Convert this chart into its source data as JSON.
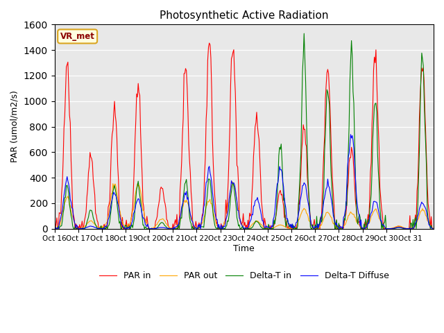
{
  "title": "Photosynthetic Active Radiation",
  "ylabel": "PAR (umol/m2/s)",
  "xlabel": "Time",
  "annotation": "VR_met",
  "ylim": [
    0,
    1600
  ],
  "background_color": "#e8e8e8",
  "legend_labels": [
    "PAR in",
    "PAR out",
    "Delta-T in",
    "Delta-T Diffuse"
  ],
  "colors": {
    "PAR_in": "red",
    "PAR_out": "orange",
    "Delta_T_in": "green",
    "Delta_T_Diffuse": "blue"
  },
  "x_tick_labels": [
    "Oct 16",
    "Oct 17",
    "Oct 18",
    "Oct 19",
    "Oct 20",
    "Oct 21",
    "Oct 22",
    "Oct 23",
    "Oct 24",
    "Oct 25",
    "Oct 26",
    "Oct 27",
    "Oct 28",
    "Oct 29",
    "Oct 30",
    "Oct 31"
  ],
  "par_in_peaks": [
    1340,
    580,
    950,
    1100,
    330,
    1250,
    1440,
    1430,
    930,
    300,
    800,
    1280,
    620,
    1390,
    20,
    1350
  ],
  "par_out_peaks": [
    250,
    60,
    350,
    350,
    80,
    230,
    220,
    350,
    60,
    30,
    160,
    130,
    130,
    150,
    20,
    150
  ],
  "delta_t_peaks": [
    340,
    150,
    330,
    350,
    50,
    380,
    390,
    350,
    60,
    640,
    1400,
    1130,
    1390,
    1020,
    10,
    1360
  ],
  "delta_diffuse_peaks": [
    380,
    20,
    290,
    230,
    10,
    280,
    460,
    380,
    240,
    480,
    360,
    360,
    740,
    220,
    10,
    210
  ]
}
